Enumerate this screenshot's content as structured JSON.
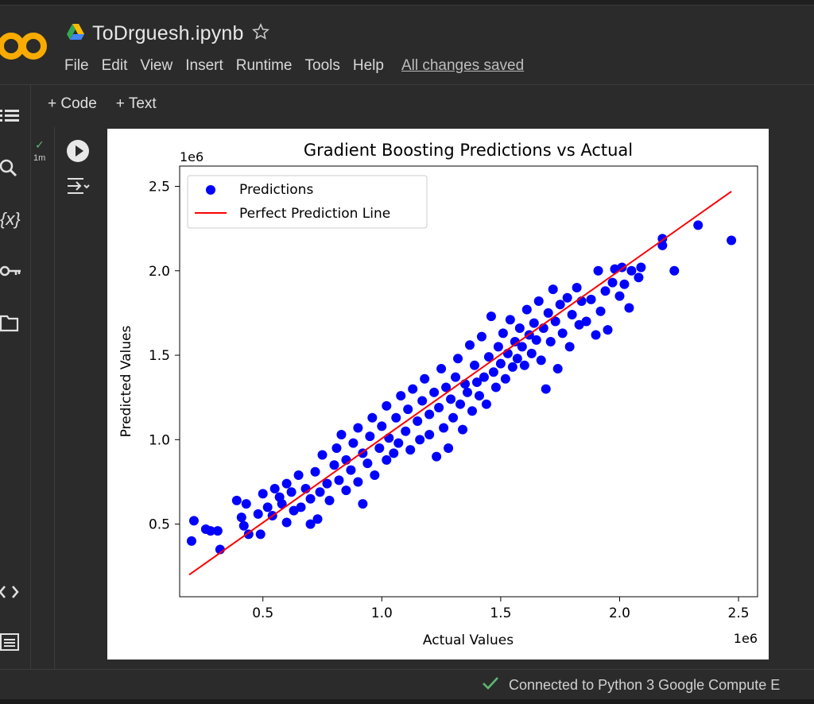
{
  "app": {
    "title": "ToDrguesh.ipynb",
    "icon": "google-drive-icon",
    "star": "star-icon"
  },
  "menu": {
    "items": [
      "File",
      "Edit",
      "View",
      "Insert",
      "Runtime",
      "Tools",
      "Help"
    ],
    "saved": "All changes saved"
  },
  "toolbar": {
    "add_code": "+ Code",
    "add_text": "+ Text"
  },
  "sidebar": {
    "icons": [
      "table-of-contents-icon",
      "search-icon",
      "variables-icon",
      "secrets-key-icon",
      "files-folder-icon",
      "code-snippets-icon",
      "terminal-icon"
    ],
    "variables_label": "{x}"
  },
  "cell": {
    "status_check": "✓",
    "exec_time": "1m"
  },
  "status": {
    "connection": "Connected to Python 3 Google Compute E"
  },
  "colors": {
    "points": "#0000ff",
    "line": "#ff0000",
    "accent": "#f9ab00",
    "status_ok": "#5bb974"
  },
  "chart_data": {
    "type": "scatter",
    "title": "Gradient Boosting Predictions vs Actual",
    "xlabel": "Actual Values",
    "ylabel": "Predicted Values",
    "x_offset_label": "1e6",
    "y_offset_label": "1e6",
    "xlim": [
      0.15,
      2.58
    ],
    "ylim": [
      0.07,
      2.62
    ],
    "xticks": [
      0.5,
      1.0,
      1.5,
      2.0,
      2.5
    ],
    "yticks": [
      0.5,
      1.0,
      1.5,
      2.0,
      2.5
    ],
    "xtick_labels": [
      "0.5",
      "1.0",
      "1.5",
      "2.0",
      "2.5"
    ],
    "ytick_labels": [
      "0.5",
      "1.0",
      "1.5",
      "2.0",
      "2.5"
    ],
    "legend": {
      "placement": "top-left",
      "entries": [
        "Predictions",
        "Perfect Prediction Line"
      ]
    },
    "grid": false,
    "series": [
      {
        "name": "Predictions",
        "kind": "scatter",
        "points": [
          [
            0.2,
            0.4
          ],
          [
            0.21,
            0.52
          ],
          [
            0.26,
            0.47
          ],
          [
            0.28,
            0.46
          ],
          [
            0.31,
            0.46
          ],
          [
            0.32,
            0.35
          ],
          [
            0.39,
            0.64
          ],
          [
            0.41,
            0.54
          ],
          [
            0.42,
            0.49
          ],
          [
            0.43,
            0.62
          ],
          [
            0.44,
            0.44
          ],
          [
            0.48,
            0.56
          ],
          [
            0.49,
            0.44
          ],
          [
            0.5,
            0.68
          ],
          [
            0.52,
            0.6
          ],
          [
            0.54,
            0.55
          ],
          [
            0.55,
            0.71
          ],
          [
            0.57,
            0.66
          ],
          [
            0.58,
            0.62
          ],
          [
            0.6,
            0.51
          ],
          [
            0.6,
            0.74
          ],
          [
            0.62,
            0.69
          ],
          [
            0.63,
            0.58
          ],
          [
            0.65,
            0.79
          ],
          [
            0.66,
            0.6
          ],
          [
            0.68,
            0.71
          ],
          [
            0.7,
            0.5
          ],
          [
            0.7,
            0.65
          ],
          [
            0.72,
            0.81
          ],
          [
            0.73,
            0.53
          ],
          [
            0.74,
            0.69
          ],
          [
            0.75,
            0.91
          ],
          [
            0.77,
            0.74
          ],
          [
            0.78,
            0.64
          ],
          [
            0.8,
            0.85
          ],
          [
            0.81,
            0.95
          ],
          [
            0.82,
            0.76
          ],
          [
            0.83,
            1.03
          ],
          [
            0.85,
            0.7
          ],
          [
            0.85,
            0.88
          ],
          [
            0.87,
            0.82
          ],
          [
            0.88,
            0.98
          ],
          [
            0.9,
            0.75
          ],
          [
            0.9,
            1.07
          ],
          [
            0.92,
            0.62
          ],
          [
            0.92,
            0.92
          ],
          [
            0.94,
            0.86
          ],
          [
            0.95,
            1.02
          ],
          [
            0.96,
            1.13
          ],
          [
            0.97,
            0.79
          ],
          [
            0.99,
            0.95
          ],
          [
            1.0,
            1.08
          ],
          [
            1.02,
            0.88
          ],
          [
            1.02,
            1.2
          ],
          [
            1.03,
            1.01
          ],
          [
            1.05,
            0.92
          ],
          [
            1.06,
            1.13
          ],
          [
            1.07,
            0.98
          ],
          [
            1.08,
            1.26
          ],
          [
            1.1,
            1.05
          ],
          [
            1.11,
            1.18
          ],
          [
            1.12,
            0.94
          ],
          [
            1.13,
            1.3
          ],
          [
            1.15,
            1.11
          ],
          [
            1.16,
            1.0
          ],
          [
            1.17,
            1.23
          ],
          [
            1.18,
            1.36
          ],
          [
            1.2,
            1.15
          ],
          [
            1.2,
            1.03
          ],
          [
            1.22,
            1.28
          ],
          [
            1.23,
            0.9
          ],
          [
            1.24,
            1.19
          ],
          [
            1.25,
            1.42
          ],
          [
            1.26,
            1.07
          ],
          [
            1.27,
            1.31
          ],
          [
            1.28,
            0.95
          ],
          [
            1.29,
            1.24
          ],
          [
            1.3,
            1.13
          ],
          [
            1.31,
            1.37
          ],
          [
            1.32,
            1.48
          ],
          [
            1.33,
            1.21
          ],
          [
            1.34,
            1.06
          ],
          [
            1.35,
            1.33
          ],
          [
            1.36,
            1.28
          ],
          [
            1.37,
            1.56
          ],
          [
            1.38,
            1.17
          ],
          [
            1.39,
            1.44
          ],
          [
            1.4,
            1.34
          ],
          [
            1.41,
            1.26
          ],
          [
            1.42,
            1.61
          ],
          [
            1.43,
            1.37
          ],
          [
            1.44,
            1.21
          ],
          [
            1.45,
            1.49
          ],
          [
            1.46,
            1.73
          ],
          [
            1.47,
            1.4
          ],
          [
            1.48,
            1.31
          ],
          [
            1.49,
            1.55
          ],
          [
            1.5,
            1.45
          ],
          [
            1.51,
            1.63
          ],
          [
            1.52,
            1.36
          ],
          [
            1.53,
            1.51
          ],
          [
            1.54,
            1.71
          ],
          [
            1.55,
            1.43
          ],
          [
            1.56,
            1.58
          ],
          [
            1.57,
            1.48
          ],
          [
            1.58,
            1.66
          ],
          [
            1.59,
            1.55
          ],
          [
            1.6,
            1.44
          ],
          [
            1.61,
            1.77
          ],
          [
            1.62,
            1.62
          ],
          [
            1.63,
            1.51
          ],
          [
            1.64,
            1.69
          ],
          [
            1.65,
            1.59
          ],
          [
            1.66,
            1.82
          ],
          [
            1.67,
            1.47
          ],
          [
            1.68,
            1.66
          ],
          [
            1.69,
            1.3
          ],
          [
            1.7,
            1.75
          ],
          [
            1.71,
            1.58
          ],
          [
            1.72,
            1.89
          ],
          [
            1.73,
            1.7
          ],
          [
            1.74,
            1.42
          ],
          [
            1.75,
            1.8
          ],
          [
            1.76,
            1.63
          ],
          [
            1.78,
            1.84
          ],
          [
            1.79,
            1.55
          ],
          [
            1.8,
            1.74
          ],
          [
            1.82,
            1.9
          ],
          [
            1.83,
            1.68
          ],
          [
            1.84,
            1.82
          ],
          [
            1.86,
            1.7
          ],
          [
            1.88,
            1.83
          ],
          [
            1.9,
            1.62
          ],
          [
            1.91,
            2.0
          ],
          [
            1.92,
            1.76
          ],
          [
            1.94,
            1.88
          ],
          [
            1.95,
            1.65
          ],
          [
            1.97,
            1.93
          ],
          [
            1.98,
            2.01
          ],
          [
            2.0,
            1.85
          ],
          [
            2.01,
            2.02
          ],
          [
            2.02,
            1.92
          ],
          [
            2.04,
            1.78
          ],
          [
            2.05,
            2.0
          ],
          [
            2.08,
            1.96
          ],
          [
            2.09,
            2.02
          ],
          [
            2.18,
            2.19
          ],
          [
            2.18,
            2.15
          ],
          [
            2.23,
            2.0
          ],
          [
            2.33,
            2.27
          ],
          [
            2.47,
            2.18
          ]
        ]
      },
      {
        "name": "Perfect Prediction Line",
        "kind": "line",
        "points": [
          [
            0.19,
            0.2
          ],
          [
            2.47,
            2.47
          ]
        ]
      }
    ]
  }
}
